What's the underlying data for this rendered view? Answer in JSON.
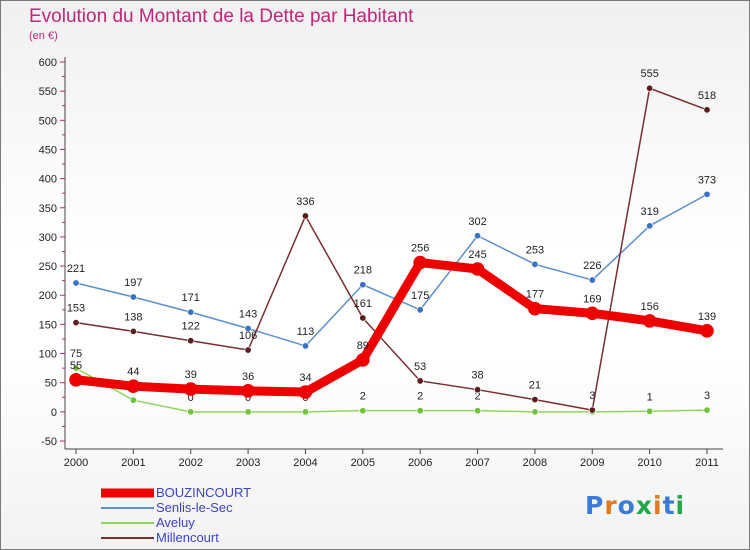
{
  "header": {
    "title": "Evolution du Montant de la Dette par Habitant",
    "subtitle": "(en €)"
  },
  "brand": {
    "text": "Proxiti",
    "colors": [
      "#3a7bd5",
      "#e07a1f",
      "#3a7bd5",
      "#22a84a",
      "#e07a1f",
      "#3a7bd5",
      "#22a84a"
    ]
  },
  "chart_data": {
    "type": "line",
    "x": [
      "2000",
      "2001",
      "2002",
      "2003",
      "2004",
      "2005",
      "2006",
      "2007",
      "2008",
      "2009",
      "2010",
      "2011"
    ],
    "ylim": [
      -50,
      600
    ],
    "yticks": [
      "-50",
      "0",
      "50",
      "100",
      "150",
      "200",
      "250",
      "300",
      "350",
      "400",
      "450",
      "500",
      "550",
      "600"
    ],
    "grid": false,
    "legend_position": "bottom-left",
    "series": [
      {
        "name": "Senlis-le-Sec",
        "color": "#5b8fd0",
        "marker": "#3d72c2",
        "width": 1.5,
        "values": [
          221,
          197,
          171,
          143,
          113,
          218,
          175,
          302,
          253,
          226,
          319,
          373
        ],
        "labels": [
          "221",
          "197",
          "171",
          "143",
          "113",
          "218",
          "175",
          "302",
          "253",
          "226",
          "319",
          "373"
        ]
      },
      {
        "name": "Aveluy",
        "color": "#8ed65a",
        "marker": "#6fc23c",
        "width": 1.5,
        "values": [
          75,
          20,
          0,
          0,
          0,
          2,
          2,
          2,
          0,
          0,
          1,
          3
        ],
        "labels": [
          "75",
          "20",
          "0",
          "0",
          "0",
          "2",
          "2",
          "2",
          "",
          "",
          "1",
          "3"
        ]
      },
      {
        "name": "Millencourt",
        "color": "#7a2e2e",
        "marker": "#5a1e1e",
        "width": 1.5,
        "values": [
          153,
          138,
          122,
          106,
          336,
          161,
          53,
          38,
          21,
          3,
          555,
          518
        ],
        "labels": [
          "153",
          "138",
          "122",
          "106",
          "336",
          "161",
          "53",
          "38",
          "21",
          "3",
          "555",
          "518"
        ]
      },
      {
        "name": "BOUZINCOURT",
        "color": "#ee0000",
        "marker": "#ee0000",
        "width": 9,
        "values": [
          55,
          44,
          39,
          36,
          34,
          89,
          256,
          245,
          177,
          169,
          156,
          139
        ],
        "labels": [
          "55",
          "44",
          "39",
          "36",
          "34",
          "89",
          "256",
          "245",
          "177",
          "169",
          "156",
          "139"
        ]
      }
    ],
    "legend": [
      "BOUZINCOURT",
      "Senlis-le-Sec",
      "Aveluy",
      "Millencourt"
    ]
  }
}
